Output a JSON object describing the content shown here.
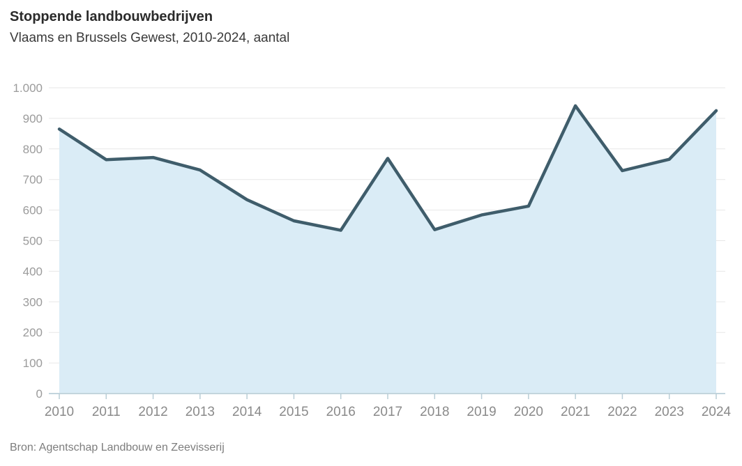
{
  "header": {
    "title": "Stoppende landbouwbedrijven",
    "subtitle": "Vlaams en Brussels Gewest, 2010-2024, aantal"
  },
  "footer": {
    "source": "Bron: Agentschap Landbouw en Zeevisserij"
  },
  "colors": {
    "line": "#3f5d6b",
    "area_fill": "#daecf6",
    "gridline": "#e7e7e7",
    "axis_line": "#c3d5dd",
    "axis_tick": "#b9cdd6",
    "y_tick_label": "#9b9b9b",
    "x_tick_label": "#8a8a8a",
    "title_text": "#2b2b2b",
    "subtitle_text": "#3a3a3a",
    "source_text": "#7d7d7d"
  },
  "chart_data": {
    "type": "area",
    "title": "Stoppende landbouwbedrijven",
    "subtitle": "Vlaams en Brussels Gewest, 2010-2024, aantal",
    "source": "Bron: Agentschap Landbouw en Zeevisserij",
    "series_name": "Stoppende landbouwbedrijven, aantal",
    "x": [
      "2010",
      "2011",
      "2012",
      "2013",
      "2014",
      "2015",
      "2016",
      "2017",
      "2018",
      "2019",
      "2020",
      "2021",
      "2022",
      "2023",
      "2024"
    ],
    "values": [
      865,
      765,
      772,
      731,
      634,
      565,
      534,
      769,
      536,
      584,
      613,
      941,
      729,
      766,
      925
    ],
    "xlabel": "",
    "ylabel": "aantal",
    "ylim": [
      0,
      1000
    ],
    "yticks": [
      0,
      100,
      200,
      300,
      400,
      500,
      600,
      700,
      800,
      900,
      1000
    ],
    "ytick_labels": [
      "0",
      "100",
      "200",
      "300",
      "400",
      "500",
      "600",
      "700",
      "800",
      "900",
      "1.000"
    ],
    "grid": true,
    "legend": "none"
  }
}
